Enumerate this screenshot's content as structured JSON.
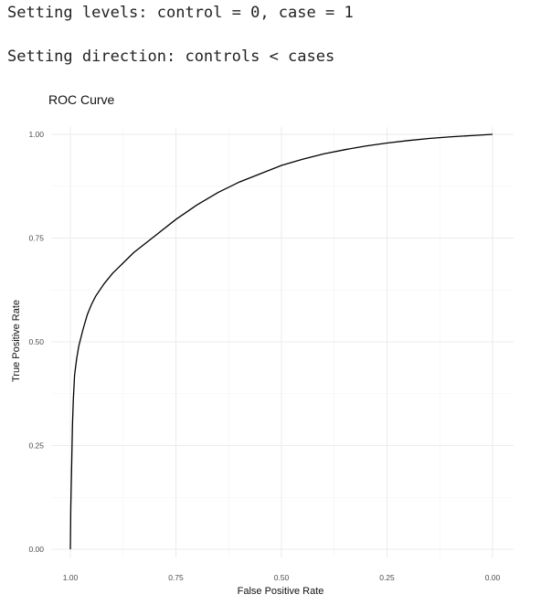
{
  "console": {
    "line1": "Setting levels: control = 0, case = 1",
    "line2": "Setting direction: controls < cases"
  },
  "chart_data": {
    "type": "line",
    "title": "ROC Curve",
    "xlabel": "False Positive Rate",
    "ylabel": "True Positive Rate",
    "x_reversed": true,
    "xlim": [
      1.0,
      0.0
    ],
    "ylim": [
      0.0,
      1.0
    ],
    "x_ticks": [
      "1.00",
      "0.75",
      "0.50",
      "0.25",
      "0.00"
    ],
    "y_ticks": [
      "0.00",
      "0.25",
      "0.50",
      "0.75",
      "1.00"
    ],
    "grid": true,
    "line_color": "#000000",
    "series": [
      {
        "x": [
          1.0,
          0.999,
          0.997,
          0.995,
          0.993,
          0.99,
          0.985,
          0.98,
          0.97,
          0.96,
          0.95,
          0.94,
          0.92,
          0.9,
          0.875,
          0.85,
          0.8,
          0.75,
          0.7,
          0.65,
          0.6,
          0.55,
          0.5,
          0.45,
          0.4,
          0.35,
          0.3,
          0.25,
          0.2,
          0.15,
          0.1,
          0.05,
          0.0
        ],
        "y": [
          0.0,
          0.1,
          0.2,
          0.3,
          0.36,
          0.42,
          0.46,
          0.49,
          0.53,
          0.565,
          0.59,
          0.61,
          0.64,
          0.665,
          0.69,
          0.715,
          0.755,
          0.795,
          0.83,
          0.86,
          0.885,
          0.905,
          0.925,
          0.94,
          0.953,
          0.963,
          0.972,
          0.979,
          0.985,
          0.99,
          0.994,
          0.997,
          1.0
        ]
      }
    ]
  }
}
